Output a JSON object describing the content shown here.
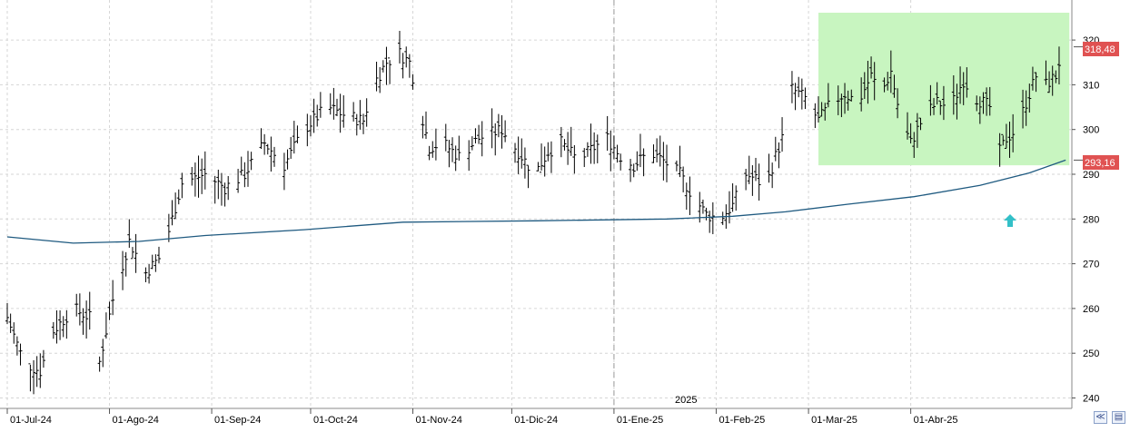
{
  "chart_data": {
    "type": "ohlc",
    "y_axis_ticks": [
      "240",
      "250",
      "260",
      "270",
      "280",
      "290",
      "300",
      "310",
      "320"
    ],
    "ylim": [
      236,
      330
    ],
    "x_axis_labels": [
      "01-Jul-24",
      "01-Ago-24",
      "01-Sep-24",
      "01-Oct-24",
      "01-Nov-24",
      "01-Dic-24",
      "01-Ene-25",
      "01-Feb-25",
      "01-Mar-25",
      "01-Abr-25"
    ],
    "year_label": "2025",
    "last_price_label": "318,48",
    "moving_average_label": "293,16",
    "last_price": 318.48,
    "moving_average_last": 293.16,
    "grid": true,
    "colors": {
      "price_badge": "#e05252",
      "moving_average_line": "#1f5a80",
      "highlight_zone": "#c8f5c0",
      "arrow": "#33c0c8",
      "bars": "#000000"
    },
    "anchors": [
      {
        "d": 0,
        "c": 258
      },
      {
        "d": 5,
        "c": 248
      },
      {
        "d": 10,
        "c": 246
      },
      {
        "d": 14,
        "c": 255
      },
      {
        "d": 20,
        "c": 260
      },
      {
        "d": 25,
        "c": 258
      },
      {
        "d": 28,
        "c": 248
      },
      {
        "d": 32,
        "c": 262
      },
      {
        "d": 37,
        "c": 275
      },
      {
        "d": 42,
        "c": 268
      },
      {
        "d": 47,
        "c": 272
      },
      {
        "d": 50,
        "c": 280
      },
      {
        "d": 53,
        "c": 288
      },
      {
        "d": 60,
        "c": 290
      },
      {
        "d": 66,
        "c": 287
      },
      {
        "d": 72,
        "c": 290
      },
      {
        "d": 78,
        "c": 297
      },
      {
        "d": 84,
        "c": 292
      },
      {
        "d": 90,
        "c": 300
      },
      {
        "d": 97,
        "c": 305
      },
      {
        "d": 103,
        "c": 303
      },
      {
        "d": 108,
        "c": 302
      },
      {
        "d": 111,
        "c": 310
      },
      {
        "d": 115,
        "c": 315
      },
      {
        "d": 119,
        "c": 317
      },
      {
        "d": 122,
        "c": 315
      },
      {
        "d": 128,
        "c": 296
      },
      {
        "d": 132,
        "c": 297
      },
      {
        "d": 137,
        "c": 294
      },
      {
        "d": 143,
        "c": 298
      },
      {
        "d": 150,
        "c": 300
      },
      {
        "d": 156,
        "c": 294
      },
      {
        "d": 160,
        "c": 290
      },
      {
        "d": 164,
        "c": 295
      },
      {
        "d": 168,
        "c": 297
      },
      {
        "d": 173,
        "c": 293
      },
      {
        "d": 178,
        "c": 296
      },
      {
        "d": 182,
        "c": 298
      },
      {
        "d": 186,
        "c": 294
      },
      {
        "d": 190,
        "c": 292
      },
      {
        "d": 195,
        "c": 295
      },
      {
        "d": 199,
        "c": 293
      },
      {
        "d": 204,
        "c": 290
      },
      {
        "d": 208,
        "c": 285
      },
      {
        "d": 212,
        "c": 281
      },
      {
        "d": 216,
        "c": 280
      },
      {
        "d": 220,
        "c": 283
      },
      {
        "d": 224,
        "c": 290
      },
      {
        "d": 227,
        "c": 289
      },
      {
        "d": 230,
        "c": 287
      },
      {
        "d": 233,
        "c": 294
      },
      {
        "d": 236,
        "c": 300
      },
      {
        "d": 238,
        "c": 309
      },
      {
        "d": 242,
        "c": 307
      },
      {
        "d": 246,
        "c": 302
      },
      {
        "d": 250,
        "c": 306
      },
      {
        "d": 254,
        "c": 308
      },
      {
        "d": 258,
        "c": 306
      },
      {
        "d": 262,
        "c": 312
      },
      {
        "d": 265,
        "c": 308
      },
      {
        "d": 268,
        "c": 313
      },
      {
        "d": 271,
        "c": 302
      },
      {
        "d": 274,
        "c": 297
      },
      {
        "d": 278,
        "c": 303
      },
      {
        "d": 282,
        "c": 306
      },
      {
        "d": 286,
        "c": 305
      },
      {
        "d": 290,
        "c": 311
      },
      {
        "d": 294,
        "c": 307
      },
      {
        "d": 298,
        "c": 305
      },
      {
        "d": 301,
        "c": 295
      },
      {
        "d": 303,
        "c": 298
      },
      {
        "d": 306,
        "c": 300
      },
      {
        "d": 309,
        "c": 306
      },
      {
        "d": 312,
        "c": 312
      },
      {
        "d": 315,
        "c": 310
      },
      {
        "d": 318,
        "c": 312
      },
      {
        "d": 320,
        "c": 318
      }
    ],
    "moving_average_path": [
      {
        "d": 0,
        "v": 276
      },
      {
        "d": 20,
        "v": 274.6
      },
      {
        "d": 40,
        "v": 275
      },
      {
        "d": 60,
        "v": 276.3
      },
      {
        "d": 90,
        "v": 277.6
      },
      {
        "d": 120,
        "v": 279.3
      },
      {
        "d": 160,
        "v": 279.6
      },
      {
        "d": 200,
        "v": 280
      },
      {
        "d": 220,
        "v": 280.6
      },
      {
        "d": 236,
        "v": 281.6
      },
      {
        "d": 255,
        "v": 283.3
      },
      {
        "d": 275,
        "v": 285
      },
      {
        "d": 295,
        "v": 287.5
      },
      {
        "d": 310,
        "v": 290.3
      },
      {
        "d": 321,
        "v": 293.16
      }
    ]
  }
}
